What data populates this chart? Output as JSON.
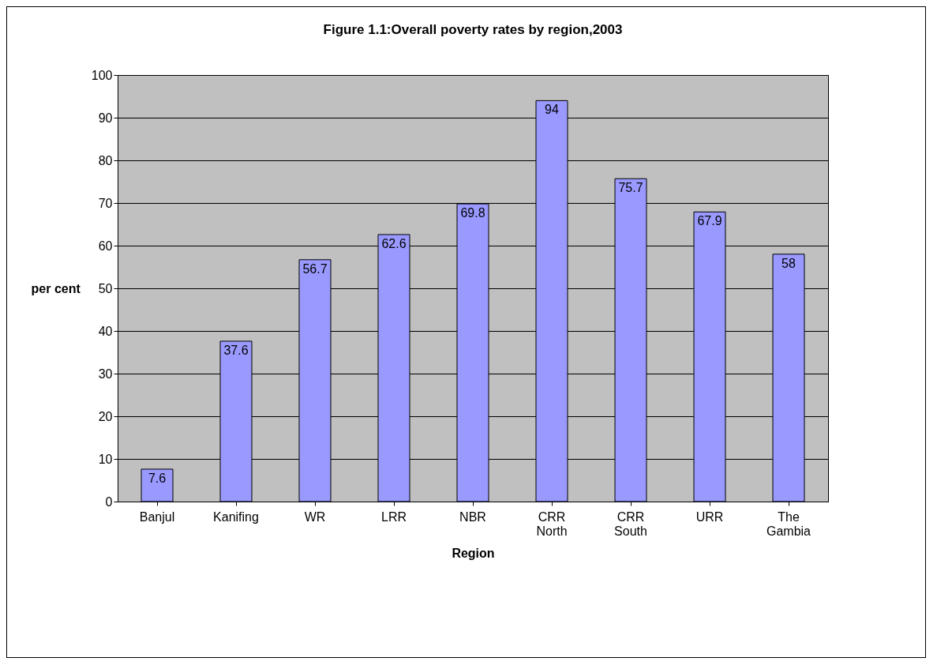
{
  "chart_data": {
    "type": "bar",
    "title": "Figure 1.1:Overall poverty rates by region,2003",
    "xlabel": "Region",
    "ylabel": "per cent",
    "categories": [
      "Banjul",
      "Kanifing",
      "WR",
      "LRR",
      "NBR",
      "CRR North",
      "CRR South",
      "URR",
      "The Gambia"
    ],
    "values": [
      7.6,
      37.6,
      56.7,
      62.6,
      69.8,
      94,
      75.7,
      67.9,
      58
    ],
    "color": "#9999ff",
    "ylim": [
      0,
      100
    ],
    "yticks": [
      0,
      10,
      20,
      30,
      40,
      50,
      60,
      70,
      80,
      90,
      100
    ],
    "grid": "y",
    "data_labels": true
  }
}
